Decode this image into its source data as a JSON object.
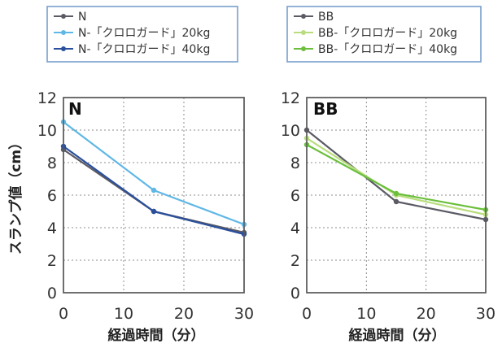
{
  "chart_data": [
    {
      "type": "line",
      "panel_label": "N",
      "xlabel": "経過時間（分）",
      "ylabel": "スランプ値（cm）",
      "xlim": [
        0,
        30
      ],
      "ylim": [
        0,
        12
      ],
      "xticks": [
        0,
        10,
        20,
        30
      ],
      "yticks": [
        0,
        2,
        4,
        6,
        8,
        10,
        12
      ],
      "grid": true,
      "legend_position": "top-left, above plot",
      "series": [
        {
          "name": "N",
          "color": "#5b5b66",
          "x": [
            0,
            15,
            30
          ],
          "y": [
            8.8,
            5.0,
            3.7
          ]
        },
        {
          "name": "N-「クロロガード」20kg",
          "color": "#5fb7e6",
          "x": [
            0,
            15,
            30
          ],
          "y": [
            10.5,
            6.3,
            4.2
          ]
        },
        {
          "name": "N-「クロロガード」40kg",
          "color": "#2a4f9c",
          "x": [
            0,
            15,
            30
          ],
          "y": [
            9.0,
            5.0,
            3.6
          ]
        }
      ]
    },
    {
      "type": "line",
      "panel_label": "BB",
      "xlabel": "経過時間（分）",
      "ylabel": "",
      "xlim": [
        0,
        30
      ],
      "ylim": [
        0,
        12
      ],
      "xticks": [
        0,
        10,
        20,
        30
      ],
      "yticks": [
        0,
        2,
        4,
        6,
        8,
        10,
        12
      ],
      "grid": true,
      "legend_position": "top-right, above plot",
      "series": [
        {
          "name": "BB",
          "color": "#5b5b66",
          "x": [
            0,
            15,
            30
          ],
          "y": [
            10.0,
            5.6,
            4.5
          ]
        },
        {
          "name": "BB-「クロロガード」20kg",
          "color": "#b9dd7e",
          "x": [
            0,
            15,
            30
          ],
          "y": [
            9.5,
            6.0,
            4.8
          ]
        },
        {
          "name": "BB-「クロロガード」40kg",
          "color": "#6bbf3c",
          "x": [
            0,
            15,
            30
          ],
          "y": [
            9.1,
            6.1,
            5.1
          ]
        }
      ]
    }
  ]
}
